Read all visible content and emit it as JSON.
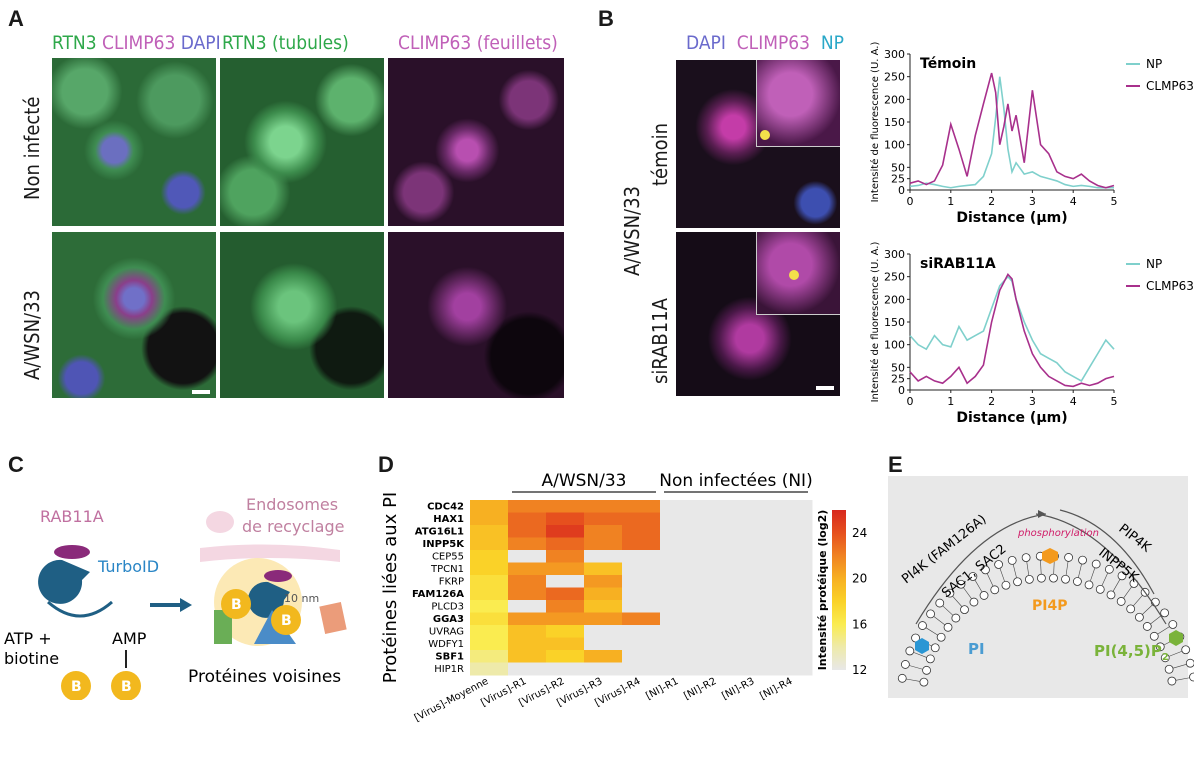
{
  "panelA": {
    "label": "A",
    "col_headers": [
      {
        "parts": [
          {
            "text": "RTN3",
            "color": "#2ea84a"
          },
          {
            "text": " CLIMP63",
            "color": "#c060b8"
          },
          {
            "text": " DAPI",
            "color": "#6a6acc"
          }
        ]
      },
      {
        "parts": [
          {
            "text": "RTN3 (tubules)",
            "color": "#2ea84a"
          }
        ]
      },
      {
        "parts": [
          {
            "text": "CLIMP63 (feuillets)",
            "color": "#c060b8"
          }
        ]
      }
    ],
    "row_labels": [
      "Non infecté",
      "A/WSN/33"
    ]
  },
  "panelB": {
    "label": "B",
    "col_header": [
      {
        "text": "DAPI",
        "color": "#6a6acc"
      },
      {
        "text": "CLIMP63",
        "color": "#c060b8"
      },
      {
        "text": "NP",
        "color": "#2aa8c8"
      }
    ],
    "row_labels": [
      "témoin",
      "siRAB11A"
    ],
    "group_label": "A/WSN/33",
    "plots": [
      {
        "title": "Témoin"
      },
      {
        "title": "siRAB11A"
      }
    ],
    "ylabel": "Intensité de fluorescence (U. A.)",
    "xlabel": "Distance (μm)",
    "legend": [
      "NP",
      "CLMP63"
    ]
  },
  "panelC": {
    "label": "C",
    "rab11a": "RAB11A",
    "turboid": "TurboID",
    "atp": "ATP +",
    "biotine": "biotine",
    "amp": "AMP",
    "b": "B",
    "endosomes": "Endosomes",
    "de_recyclage": "de recyclage",
    "nm": "10 nm",
    "voisines": "Protéines voisines"
  },
  "panelD": {
    "label": "D",
    "group_infected": "A/WSN/33",
    "group_ni": "Non infectées (NI)",
    "ylabel": "Protéines liées aux PI",
    "colorbar_label": "Intensité protéique (log2)",
    "colorbar_ticks": [
      "24",
      "20",
      "16",
      "12"
    ]
  },
  "panelE": {
    "label": "E",
    "pi4k": "PI4K (FAM126A)",
    "sac": "SAC1, SAC2",
    "phos": "phosphorylation",
    "pip4k": "PIP4K",
    "inpp5k": "INPP5K",
    "pi": "PI",
    "pi4p": "PI4P",
    "pi45p2": "PI(4,5)P",
    "p_sub": "2",
    "p": "P"
  },
  "chart_data": [
    {
      "type": "line",
      "title": "Témoin",
      "xlabel": "Distance (μm)",
      "ylabel": "Intensité de fluorescence (U. A.)",
      "xlim": [
        0,
        5
      ],
      "ylim": [
        0,
        300
      ],
      "xticks": [
        0,
        1,
        2,
        3,
        4,
        5
      ],
      "yticks": [
        0,
        25,
        50,
        100,
        150,
        200,
        250,
        300
      ],
      "legend": "top-right",
      "series": [
        {
          "name": "NP",
          "color": "#7fd0cc",
          "x": [
            0,
            0.2,
            0.4,
            0.6,
            0.8,
            1.0,
            1.2,
            1.4,
            1.6,
            1.8,
            2.0,
            2.1,
            2.2,
            2.3,
            2.4,
            2.5,
            2.6,
            2.8,
            3.0,
            3.2,
            3.4,
            3.6,
            3.8,
            4.0,
            4.2,
            4.4,
            4.6,
            4.8,
            5.0
          ],
          "y": [
            8,
            10,
            15,
            12,
            8,
            5,
            8,
            10,
            12,
            30,
            80,
            160,
            250,
            180,
            90,
            40,
            60,
            35,
            40,
            30,
            25,
            20,
            12,
            8,
            10,
            8,
            5,
            5,
            5
          ]
        },
        {
          "name": "CLMP63",
          "color": "#a8308c",
          "x": [
            0,
            0.2,
            0.4,
            0.6,
            0.8,
            1.0,
            1.2,
            1.4,
            1.6,
            1.8,
            2.0,
            2.1,
            2.2,
            2.3,
            2.4,
            2.5,
            2.6,
            2.8,
            3.0,
            3.2,
            3.4,
            3.6,
            3.8,
            4.0,
            4.2,
            4.4,
            4.6,
            4.8,
            5.0
          ],
          "y": [
            15,
            20,
            12,
            20,
            55,
            145,
            90,
            30,
            120,
            190,
            258,
            215,
            100,
            140,
            190,
            130,
            165,
            60,
            220,
            100,
            80,
            40,
            30,
            25,
            35,
            20,
            10,
            5,
            10
          ]
        }
      ]
    },
    {
      "type": "line",
      "title": "siRAB11A",
      "xlabel": "Distance (μm)",
      "ylabel": "Intensité de fluorescence (U. A.)",
      "xlim": [
        0,
        5
      ],
      "ylim": [
        0,
        300
      ],
      "xticks": [
        0,
        1,
        2,
        3,
        4,
        5
      ],
      "yticks": [
        0,
        25,
        50,
        100,
        150,
        200,
        250,
        300
      ],
      "legend": "top-right",
      "series": [
        {
          "name": "NP",
          "color": "#7fd0cc",
          "x": [
            0,
            0.2,
            0.4,
            0.6,
            0.8,
            1.0,
            1.2,
            1.4,
            1.6,
            1.8,
            2.0,
            2.2,
            2.4,
            2.5,
            2.6,
            2.8,
            3.0,
            3.2,
            3.4,
            3.6,
            3.8,
            4.0,
            4.2,
            4.4,
            4.6,
            4.8,
            5.0
          ],
          "y": [
            120,
            100,
            90,
            120,
            100,
            95,
            140,
            110,
            120,
            130,
            180,
            230,
            250,
            240,
            200,
            150,
            110,
            80,
            70,
            60,
            40,
            30,
            20,
            50,
            80,
            110,
            90
          ]
        },
        {
          "name": "CLMP63",
          "color": "#a8308c",
          "x": [
            0,
            0.2,
            0.4,
            0.6,
            0.8,
            1.0,
            1.2,
            1.4,
            1.6,
            1.8,
            2.0,
            2.2,
            2.4,
            2.5,
            2.6,
            2.8,
            3.0,
            3.2,
            3.4,
            3.6,
            3.8,
            4.0,
            4.2,
            4.4,
            4.6,
            4.8,
            5.0
          ],
          "y": [
            40,
            20,
            30,
            20,
            15,
            30,
            50,
            15,
            30,
            55,
            150,
            220,
            255,
            245,
            200,
            130,
            80,
            50,
            30,
            20,
            10,
            8,
            15,
            10,
            15,
            25,
            30
          ]
        }
      ]
    },
    {
      "type": "heatmap",
      "x": [
        "[Virus]-Moyenne",
        "[Virus]-R1",
        "[Virus]-R2",
        "[Virus]-R3",
        "[Virus]-R4",
        "[NI]-R1",
        "[NI]-R2",
        "[NI]-R3",
        "[NI]-R4"
      ],
      "y": [
        "CDC42",
        "HAX1",
        "ATG16L1",
        "INPP5K",
        "CEP55",
        "TPCN1",
        "FKRP",
        "FAM126A",
        "PLCD3",
        "GGA3",
        "UVRAG",
        "WDFY1",
        "SBF1",
        "HIP1R"
      ],
      "bold_rows": [
        "CDC42",
        "HAX1",
        "ATG16L1",
        "INPP5K",
        "FAM126A",
        "GGA3",
        "SBF1"
      ],
      "value_range": [
        12,
        26
      ],
      "values": [
        [
          20,
          22,
          22,
          22,
          22,
          12,
          12,
          12,
          12
        ],
        [
          20,
          23,
          24,
          23,
          23,
          12,
          12,
          12,
          12
        ],
        [
          19,
          23,
          25,
          22,
          23,
          12,
          12,
          12,
          12
        ],
        [
          19,
          22,
          23,
          22,
          23,
          12,
          12,
          12,
          12
        ],
        [
          18,
          12,
          22,
          12,
          12,
          12,
          12,
          12,
          12
        ],
        [
          18,
          21,
          21,
          19,
          12,
          12,
          12,
          12,
          12
        ],
        [
          17,
          22,
          12,
          21,
          12,
          12,
          12,
          12,
          12
        ],
        [
          17,
          22,
          23,
          20,
          12,
          12,
          12,
          12,
          12
        ],
        [
          16,
          12,
          22,
          19,
          12,
          12,
          12,
          12,
          12
        ],
        [
          17,
          21,
          21,
          21,
          22,
          12,
          12,
          12,
          12
        ],
        [
          16,
          19,
          18,
          12,
          12,
          12,
          12,
          12,
          12
        ],
        [
          16,
          19,
          19,
          12,
          12,
          12,
          12,
          12,
          12
        ],
        [
          15,
          19,
          18,
          20,
          12,
          12,
          12,
          12,
          12
        ],
        [
          14,
          12,
          12,
          12,
          12,
          12,
          12,
          12,
          12
        ]
      ]
    }
  ]
}
